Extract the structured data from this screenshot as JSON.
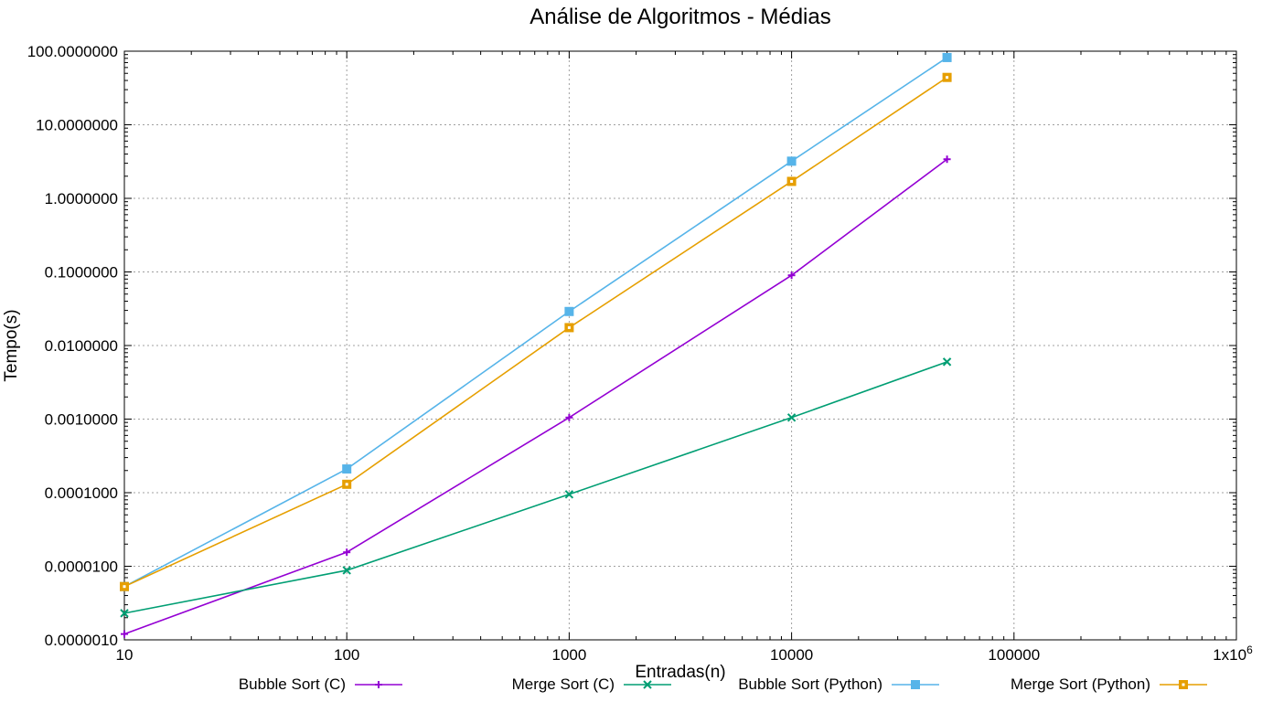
{
  "chart_data": {
    "type": "line",
    "title": "Análise de Algoritmos - Médias",
    "xlabel": "Entradas(n)",
    "ylabel": "Tempo(s)",
    "xscale": "log",
    "yscale": "log",
    "xlim": [
      10,
      1000000
    ],
    "ylim": [
      1e-06,
      100
    ],
    "grid": true,
    "legend_position": "bottom",
    "x_ticks": [
      10,
      100,
      1000,
      10000,
      100000,
      1000000
    ],
    "x_tick_labels": [
      "10",
      "100",
      "1000",
      "10000",
      "100000",
      "1x10"
    ],
    "x_tick_last_superscript": "6",
    "y_ticks": [
      1e-06,
      1e-05,
      0.0001,
      0.001,
      0.01,
      0.1,
      1,
      10,
      100
    ],
    "y_tick_labels": [
      "0.0000010",
      "0.0000100",
      "0.0001000",
      "0.0010000",
      "0.0100000",
      "0.1000000",
      "1.0000000",
      "10.0000000",
      "100.0000000"
    ],
    "x": [
      10,
      100,
      1000,
      10000,
      50000
    ],
    "series": [
      {
        "name": "Bubble Sort (C)",
        "color": "#9400d3",
        "marker": "plus",
        "values": [
          1.2e-06,
          1.55e-05,
          0.00105,
          0.09,
          3.4
        ]
      },
      {
        "name": "Merge Sort (C)",
        "color": "#009e73",
        "marker": "cross",
        "values": [
          2.3e-06,
          8.8e-06,
          9.5e-05,
          0.00105,
          0.006
        ]
      },
      {
        "name": "Bubble Sort (Python)",
        "color": "#56b4e9",
        "marker": "asterisk",
        "values": [
          5.3e-06,
          0.00021,
          0.029,
          3.2,
          82
        ]
      },
      {
        "name": "Merge Sort (Python)",
        "color": "#e69f00",
        "marker": "box",
        "values": [
          5.3e-06,
          0.00013,
          0.0175,
          1.7,
          44
        ]
      }
    ]
  }
}
